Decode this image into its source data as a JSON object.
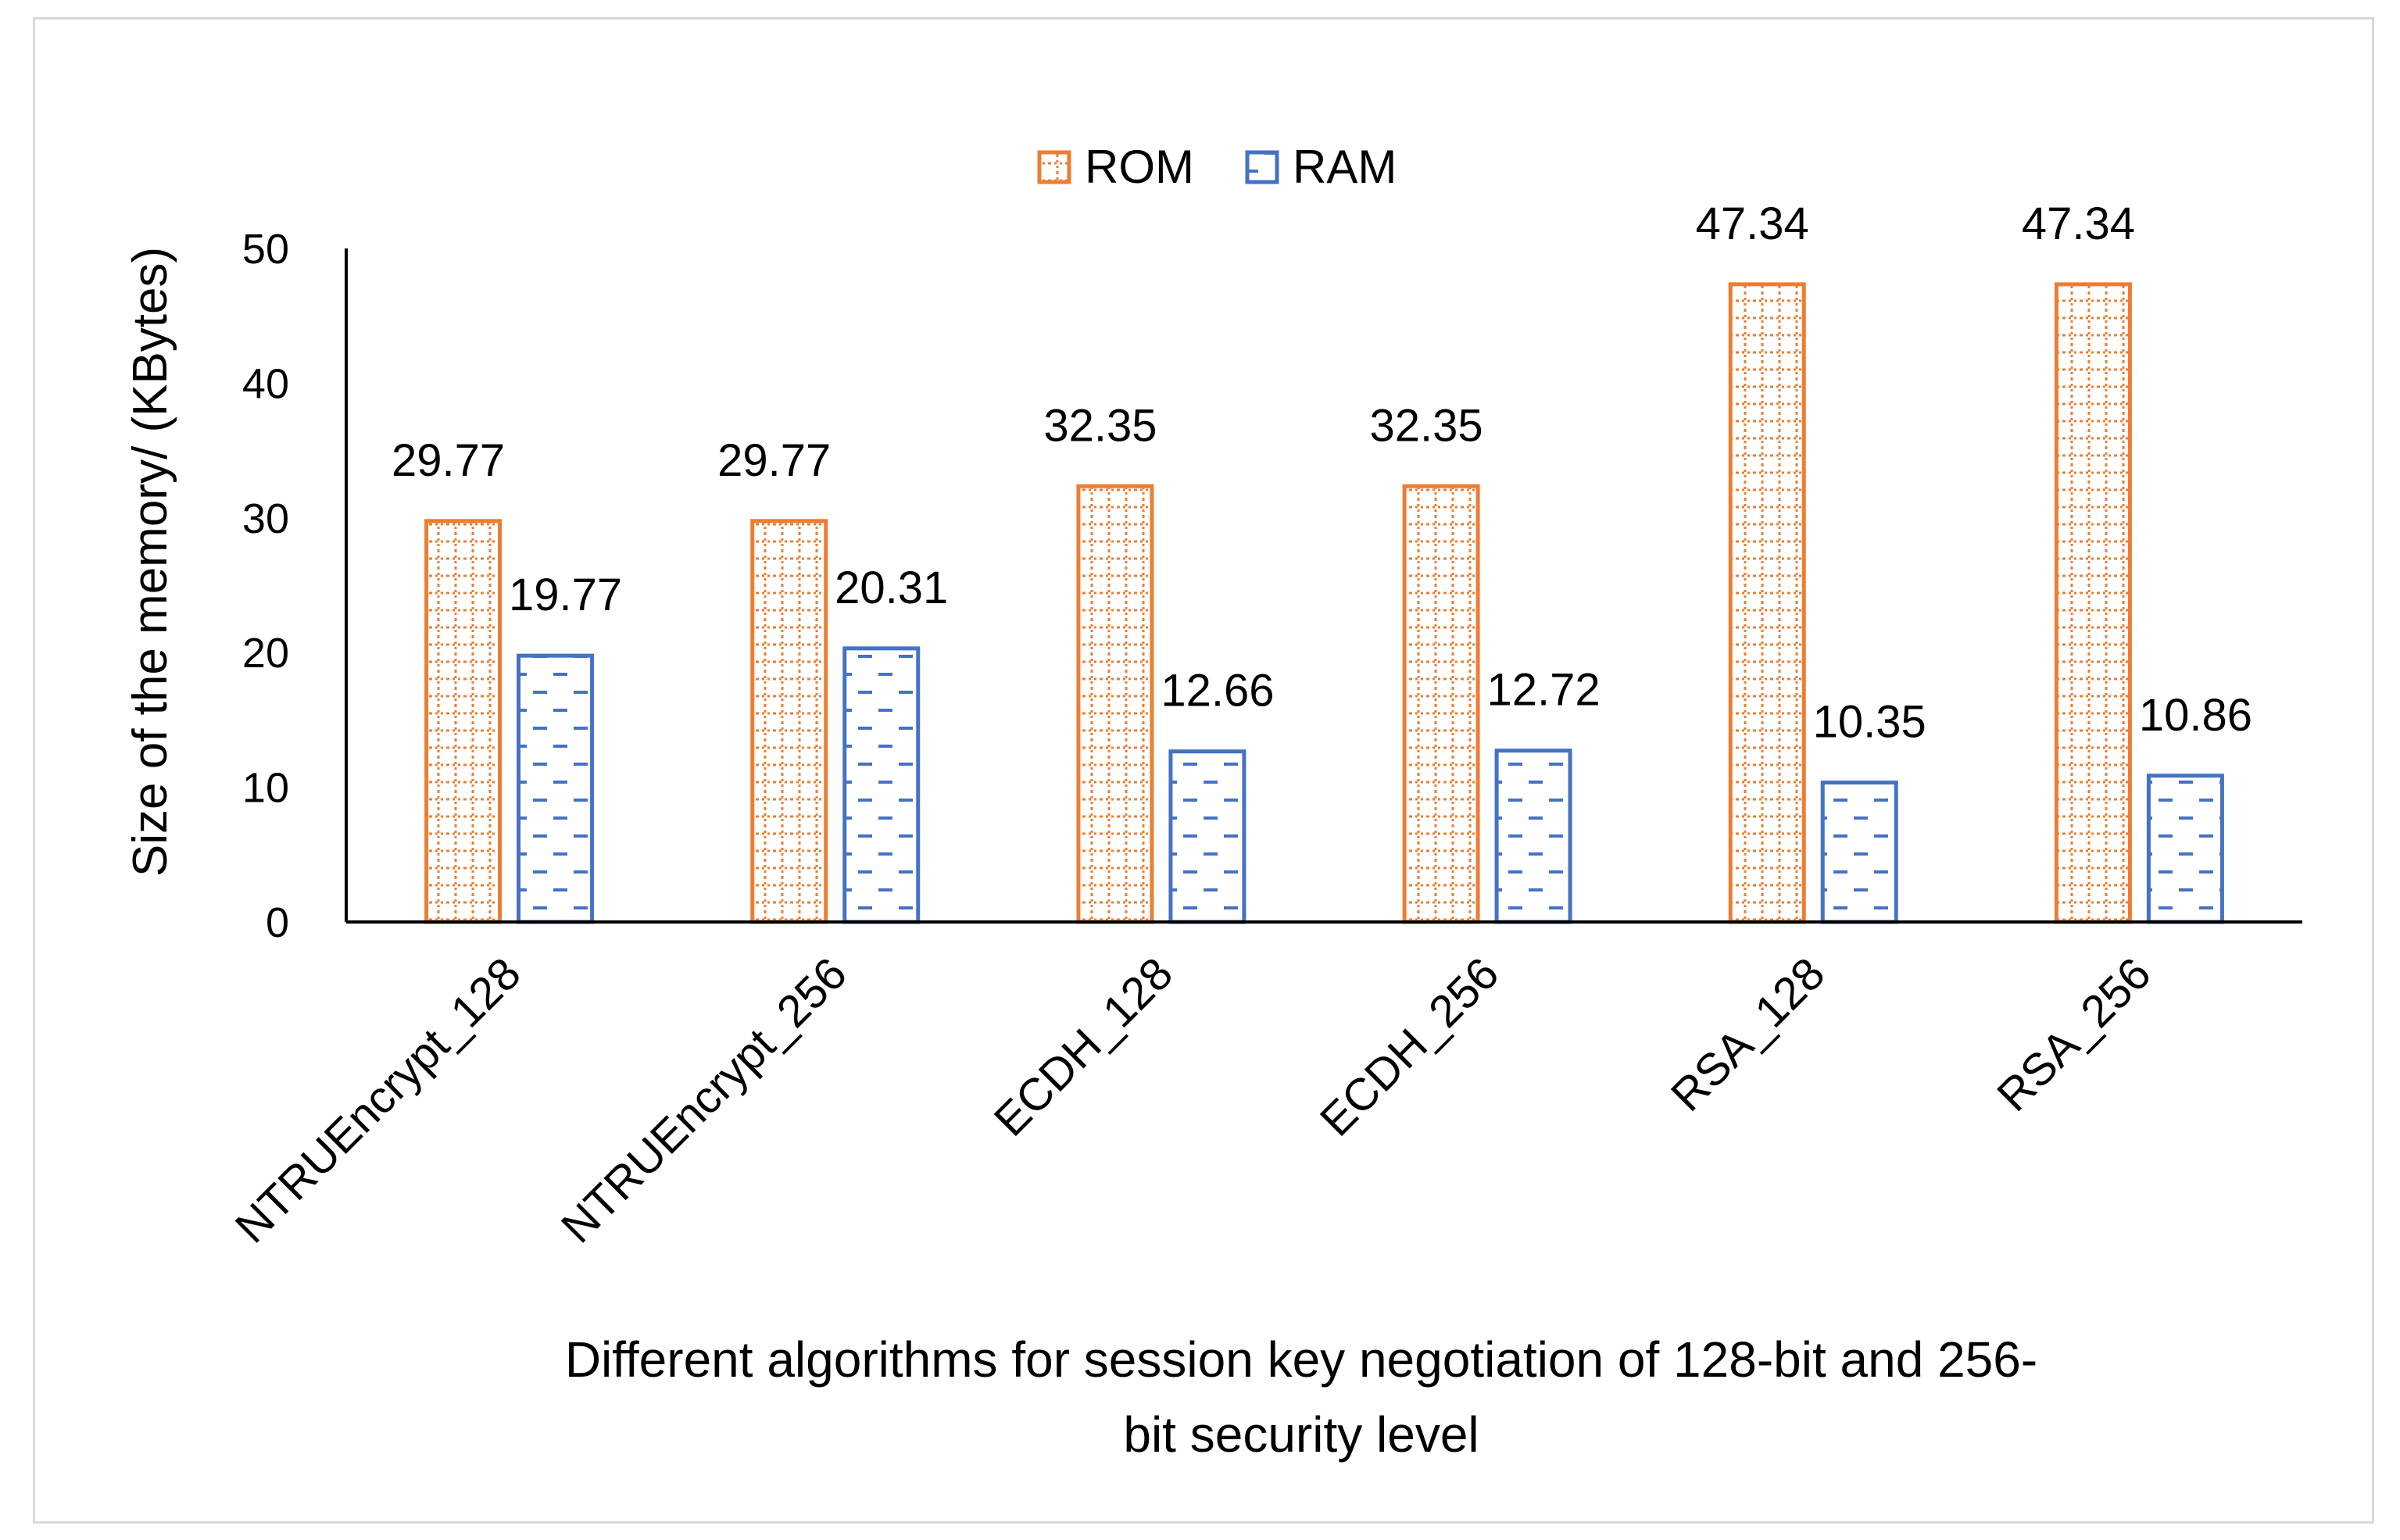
{
  "chart_data": {
    "type": "bar",
    "title": "",
    "categories": [
      "NTRUEncrypt_128",
      "NTRUEncrypt_256",
      "ECDH_128",
      "ECDH_256",
      "RSA_128",
      "RSA_256"
    ],
    "series": [
      {
        "name": "ROM",
        "color": "#ed7d31",
        "pattern": "dotted-grid",
        "values": [
          29.77,
          29.77,
          32.35,
          32.35,
          47.34,
          47.34
        ],
        "labels": [
          "29.77",
          "29.77",
          "32.35",
          "32.35",
          "47.34",
          "47.34"
        ]
      },
      {
        "name": "RAM",
        "color": "#4472c4",
        "pattern": "dashed-horizontal",
        "values": [
          19.77,
          20.31,
          12.66,
          12.72,
          10.35,
          10.86
        ],
        "labels": [
          "19.77",
          "20.31",
          "12.66",
          "12.72",
          "10.35",
          "10.86"
        ]
      }
    ],
    "ylabel": "Size of the memory/ (KBytes)",
    "xlabel_lines": [
      "Different algorithms for session key negotiation of 128-bit and 256-",
      "bit security level"
    ],
    "ylim": [
      0,
      50
    ],
    "yticks": [
      0,
      10,
      20,
      30,
      40,
      50
    ],
    "ytick_labels": [
      "0",
      "10",
      "20",
      "30",
      "40",
      "50"
    ],
    "grid": false,
    "legend_position": "top-center"
  }
}
